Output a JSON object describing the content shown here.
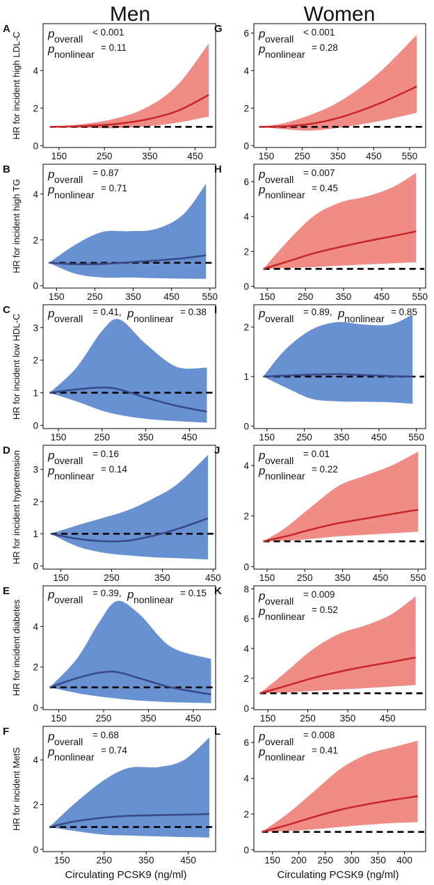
{
  "figure": {
    "col_titles": [
      "Men",
      "Women"
    ],
    "x_label": "Circulating PCSK9 (ng/ml)",
    "p_symbol": "p",
    "sub_overall": "overall",
    "sub_nonlinear": "nonlinear"
  },
  "colors": {
    "red_band": "#f08c86",
    "red_line": "#c8282a",
    "blue_band": "#6891d2",
    "blue_line": "#3a4a88",
    "reference": "#000000"
  },
  "chart_data": [
    {
      "panel": "A",
      "type": "line",
      "sex": "Men",
      "ylabel": "HR for incident high LDL-C",
      "color": "red",
      "xlim": [
        115,
        495
      ],
      "ylim": [
        -0.1,
        6.5
      ],
      "xticks": [
        150,
        250,
        350,
        450
      ],
      "yticks": [
        0,
        2,
        4
      ],
      "x": [
        130,
        200,
        270,
        340,
        410,
        480
      ],
      "y": [
        1.0,
        1.04,
        1.14,
        1.38,
        1.84,
        2.7
      ],
      "lower": [
        1.0,
        0.96,
        0.93,
        1.02,
        1.22,
        1.55
      ],
      "upper": [
        1.0,
        1.14,
        1.42,
        2.0,
        3.2,
        5.45
      ],
      "p_overall": "< 0.001",
      "p_nonlinear": "= 0.11",
      "p_layout": "two-line"
    },
    {
      "panel": "G",
      "type": "line",
      "sex": "Women",
      "ylabel": "",
      "color": "red",
      "xlim": [
        115,
        595
      ],
      "ylim": [
        -0.1,
        6.5
      ],
      "xticks": [
        150,
        250,
        350,
        450,
        550
      ],
      "yticks": [
        0,
        2,
        4,
        6
      ],
      "x": [
        130,
        200,
        270,
        340,
        410,
        480,
        570
      ],
      "y": [
        1.0,
        1.03,
        1.15,
        1.42,
        1.84,
        2.36,
        3.15
      ],
      "lower": [
        1.0,
        0.88,
        0.8,
        0.92,
        1.12,
        1.36,
        1.75
      ],
      "upper": [
        1.0,
        1.2,
        1.62,
        2.2,
        3.05,
        4.15,
        5.9
      ],
      "p_overall": "< 0.001",
      "p_nonlinear": "= 0.28",
      "p_layout": "two-line"
    },
    {
      "panel": "B",
      "type": "line",
      "sex": "Men",
      "ylabel": "HR for incident high TG",
      "color": "blue",
      "xlim": [
        115,
        565
      ],
      "ylim": [
        -0.1,
        5.3
      ],
      "xticks": [
        150,
        250,
        350,
        450,
        550
      ],
      "yticks": [
        0,
        2,
        4
      ],
      "x": [
        130,
        200,
        270,
        340,
        410,
        480,
        540
      ],
      "y": [
        1.0,
        0.94,
        0.95,
        1.02,
        1.1,
        1.2,
        1.33
      ],
      "lower": [
        1.0,
        0.52,
        0.36,
        0.36,
        0.33,
        0.31,
        0.3
      ],
      "upper": [
        1.0,
        1.8,
        2.35,
        2.38,
        2.48,
        3.1,
        4.45
      ],
      "p_overall": "= 0.87",
      "p_nonlinear": "= 0.71",
      "p_layout": "two-line"
    },
    {
      "panel": "H",
      "type": "line",
      "sex": "Women",
      "ylabel": "",
      "color": "red",
      "xlim": [
        115,
        565
      ],
      "ylim": [
        -0.1,
        7.0
      ],
      "xticks": [
        150,
        250,
        350,
        450,
        550
      ],
      "yticks": [
        0,
        2,
        4,
        6
      ],
      "x": [
        140,
        200,
        270,
        340,
        410,
        480,
        540
      ],
      "y": [
        1.0,
        1.4,
        1.88,
        2.25,
        2.58,
        2.88,
        3.15
      ],
      "lower": [
        1.0,
        1.05,
        1.1,
        1.18,
        1.25,
        1.32,
        1.38
      ],
      "upper": [
        1.0,
        2.5,
        4.0,
        4.8,
        5.15,
        5.7,
        6.5
      ],
      "p_overall": "= 0.007",
      "p_nonlinear": "= 0.45",
      "p_layout": "two-line"
    },
    {
      "panel": "C",
      "type": "line",
      "sex": "Men",
      "ylabel": "HR for incident low HDL-C",
      "color": "blue",
      "xlim": [
        115,
        510
      ],
      "ylim": [
        -0.1,
        3.7
      ],
      "xticks": [
        150,
        250,
        350,
        450
      ],
      "yticks": [
        0,
        1,
        2,
        3
      ],
      "x": [
        130,
        190,
        250,
        290,
        350,
        420,
        490
      ],
      "y": [
        1.0,
        1.1,
        1.16,
        1.1,
        0.85,
        0.6,
        0.42
      ],
      "lower": [
        1.0,
        0.74,
        0.45,
        0.32,
        0.2,
        0.13,
        0.08
      ],
      "upper": [
        1.0,
        1.75,
        2.9,
        3.25,
        2.5,
        1.8,
        1.77
      ],
      "p_overall": "= 0.41,",
      "p_nonlinear": "= 0.38",
      "p_layout": "one-line"
    },
    {
      "panel": "I",
      "type": "line",
      "sex": "Women",
      "ylabel": "",
      "color": "blue",
      "xlim": [
        115,
        575
      ],
      "ylim": [
        -0.05,
        2.45
      ],
      "xticks": [
        150,
        250,
        350,
        450,
        550
      ],
      "yticks": [
        0,
        1,
        2
      ],
      "x": [
        140,
        200,
        270,
        340,
        410,
        480,
        540
      ],
      "y": [
        1.0,
        1.02,
        1.04,
        1.05,
        1.03,
        1.01,
        1.0
      ],
      "lower": [
        1.0,
        0.78,
        0.55,
        0.5,
        0.49,
        0.48,
        0.45
      ],
      "upper": [
        1.0,
        1.55,
        1.95,
        2.1,
        2.05,
        2.05,
        2.25
      ],
      "p_overall": "= 0.89,",
      "p_nonlinear": "= 0.85",
      "p_layout": "one-line"
    },
    {
      "panel": "D",
      "type": "line",
      "sex": "Men",
      "ylabel": "HR for incident hypertension",
      "color": "blue",
      "xlim": [
        115,
        455
      ],
      "ylim": [
        -0.1,
        3.75
      ],
      "xticks": [
        150,
        250,
        350,
        450
      ],
      "yticks": [
        0,
        1,
        2,
        3
      ],
      "x": [
        130,
        180,
        230,
        280,
        330,
        380,
        440
      ],
      "y": [
        1.0,
        0.85,
        0.77,
        0.78,
        0.93,
        1.15,
        1.48
      ],
      "lower": [
        1.0,
        0.62,
        0.42,
        0.33,
        0.27,
        0.24,
        0.2
      ],
      "upper": [
        1.0,
        1.25,
        1.48,
        1.72,
        2.08,
        2.55,
        3.45
      ],
      "p_overall": "= 0.16",
      "p_nonlinear": "= 0.14",
      "p_layout": "two-line"
    },
    {
      "panel": "J",
      "type": "line",
      "sex": "Women",
      "ylabel": "",
      "color": "red",
      "xlim": [
        115,
        570
      ],
      "ylim": [
        -0.1,
        4.8
      ],
      "xticks": [
        150,
        250,
        350,
        450,
        550
      ],
      "yticks": [
        0,
        2,
        4
      ],
      "x": [
        140,
        200,
        270,
        340,
        410,
        480,
        550
      ],
      "y": [
        1.0,
        1.2,
        1.48,
        1.72,
        1.9,
        2.08,
        2.25
      ],
      "lower": [
        1.0,
        1.02,
        1.1,
        1.2,
        1.26,
        1.32,
        1.38
      ],
      "upper": [
        1.0,
        1.55,
        2.4,
        3.2,
        3.6,
        4.0,
        4.55
      ],
      "p_overall": "= 0.01",
      "p_nonlinear": "= 0.22",
      "p_layout": "two-line"
    },
    {
      "panel": "E",
      "type": "line",
      "sex": "Men",
      "ylabel": "HR for incident diabetes",
      "color": "blue",
      "xlim": [
        115,
        500
      ],
      "ylim": [
        -0.1,
        6.0
      ],
      "xticks": [
        150,
        250,
        350,
        450
      ],
      "yticks": [
        0,
        2,
        4
      ],
      "x": [
        130,
        190,
        240,
        280,
        330,
        400,
        490
      ],
      "y": [
        1.0,
        1.45,
        1.72,
        1.75,
        1.45,
        1.0,
        0.65
      ],
      "lower": [
        1.0,
        0.72,
        0.55,
        0.45,
        0.35,
        0.27,
        0.22
      ],
      "upper": [
        1.0,
        2.4,
        4.2,
        5.25,
        4.6,
        3.0,
        2.4
      ],
      "p_overall": "= 0.39,",
      "p_nonlinear": "= 0.15",
      "p_layout": "one-line"
    },
    {
      "panel": "K",
      "type": "line",
      "sex": "Women",
      "ylabel": "",
      "color": "red",
      "xlim": [
        115,
        545
      ],
      "ylim": [
        -0.1,
        8.2
      ],
      "xticks": [
        150,
        250,
        350,
        450
      ],
      "yticks": [
        0,
        2,
        4,
        6,
        8
      ],
      "x": [
        130,
        190,
        260,
        330,
        400,
        460,
        520
      ],
      "y": [
        1.0,
        1.45,
        2.0,
        2.45,
        2.82,
        3.1,
        3.4
      ],
      "lower": [
        1.0,
        1.05,
        1.15,
        1.25,
        1.35,
        1.45,
        1.55
      ],
      "upper": [
        1.0,
        2.3,
        3.9,
        5.0,
        5.6,
        6.3,
        7.5
      ],
      "p_overall": "= 0.009",
      "p_nonlinear": "= 0.52",
      "p_layout": "two-line"
    },
    {
      "panel": "F",
      "type": "line",
      "sex": "Men",
      "ylabel": "HR for incident MetS",
      "color": "blue",
      "xlim": [
        105,
        515
      ],
      "ylim": [
        -0.1,
        5.5
      ],
      "xticks": [
        150,
        250,
        350,
        450
      ],
      "yticks": [
        0,
        2,
        4
      ],
      "x": [
        120,
        180,
        250,
        310,
        380,
        440,
        500
      ],
      "y": [
        1.0,
        1.25,
        1.42,
        1.5,
        1.53,
        1.55,
        1.58
      ],
      "lower": [
        1.0,
        0.82,
        0.66,
        0.62,
        0.58,
        0.55,
        0.53
      ],
      "upper": [
        1.0,
        2.05,
        3.1,
        3.65,
        3.68,
        4.0,
        5.0
      ],
      "p_overall": "= 0.68",
      "p_nonlinear": "= 0.74",
      "p_layout": "two-line"
    },
    {
      "panel": "L",
      "type": "line",
      "sex": "Women",
      "ylabel": "",
      "color": "red",
      "xlim": [
        115,
        440
      ],
      "ylim": [
        -0.1,
        6.9
      ],
      "xticks": [
        150,
        200,
        250,
        300,
        350,
        400
      ],
      "yticks": [
        0,
        2,
        4,
        6
      ],
      "x": [
        130,
        180,
        230,
        280,
        330,
        380,
        425
      ],
      "y": [
        1.0,
        1.4,
        1.85,
        2.25,
        2.55,
        2.8,
        3.0
      ],
      "lower": [
        1.0,
        1.05,
        1.15,
        1.28,
        1.4,
        1.5,
        1.55
      ],
      "upper": [
        1.0,
        2.05,
        3.3,
        4.55,
        5.35,
        5.75,
        6.1
      ],
      "p_overall": "= 0.008",
      "p_nonlinear": "= 0.41",
      "p_layout": "two-line"
    }
  ]
}
